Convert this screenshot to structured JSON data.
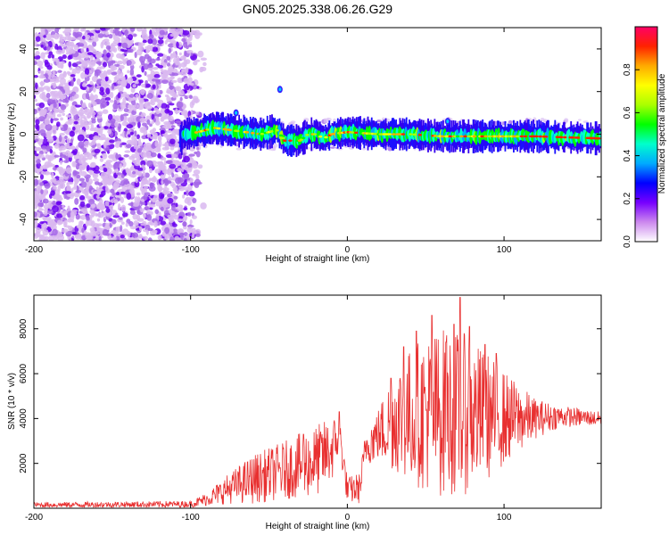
{
  "title": "GN05.2025.338.06.26.G29",
  "chart_data": [
    {
      "type": "heatmap",
      "xlabel": "Height of straight line (km)",
      "ylabel": "Frequency (Hz)",
      "xlim": [
        -200,
        162
      ],
      "ylim": [
        -50,
        50
      ],
      "xticks": [
        -200,
        -100,
        0,
        100
      ],
      "xtick_labels": [
        "-200",
        "-100",
        "0",
        "100"
      ],
      "yticks": [
        -40,
        -20,
        0,
        20,
        40
      ],
      "ytick_labels": [
        "-40",
        "-20",
        "0",
        "20",
        "40"
      ],
      "colorbar": {
        "label": "Normalized spectral amplitude",
        "range": [
          0,
          1
        ],
        "ticks": [
          0,
          0.2,
          0.4,
          0.6,
          0.8
        ],
        "tick_labels": [
          "0.0",
          "0.2",
          "0.4",
          "0.6",
          "0.8"
        ],
        "colors": [
          "#ffffff",
          "#cc88ee",
          "#7700ff",
          "#0000ff",
          "#00aaff",
          "#00ffcc",
          "#00ff00",
          "#aaff00",
          "#ffff00",
          "#ffaa00",
          "#ff2200",
          "#ff0066"
        ]
      },
      "noise_region_x": [
        -200,
        -95
      ],
      "signal_ridge": [
        {
          "x": -105,
          "y": 0
        },
        {
          "x": -95,
          "y": 1
        },
        {
          "x": -85,
          "y": 3
        },
        {
          "x": -75,
          "y": 2
        },
        {
          "x": -65,
          "y": 1
        },
        {
          "x": -55,
          "y": 0
        },
        {
          "x": -45,
          "y": 2
        },
        {
          "x": -40,
          "y": -3
        },
        {
          "x": -30,
          "y": -3
        },
        {
          "x": -25,
          "y": 0
        },
        {
          "x": -20,
          "y": 0
        },
        {
          "x": -15,
          "y": -2
        },
        {
          "x": -10,
          "y": 0
        },
        {
          "x": 0,
          "y": 1
        },
        {
          "x": 20,
          "y": 0
        },
        {
          "x": 40,
          "y": 0
        },
        {
          "x": 60,
          "y": -1
        },
        {
          "x": 90,
          "y": -1
        },
        {
          "x": 120,
          "y": -1
        },
        {
          "x": 162,
          "y": -2
        }
      ],
      "features": [
        {
          "x": -71,
          "y": 10
        },
        {
          "x": -43,
          "y": 21
        },
        {
          "x": 64,
          "y": 6
        }
      ]
    },
    {
      "type": "line",
      "xlabel": "Height of straight line (km)",
      "ylabel": "SNR (10 * v/v)",
      "xlim": [
        -200,
        162
      ],
      "ylim": [
        0,
        9500
      ],
      "xticks": [
        -200,
        -100,
        0,
        100
      ],
      "xtick_labels": [
        "-200",
        "-100",
        "0",
        "100"
      ],
      "yticks": [
        2000,
        4000,
        6000,
        8000
      ],
      "ytick_labels": [
        "2000",
        "4000",
        "6000",
        "8000"
      ],
      "color": "#e83030",
      "envelope": [
        {
          "x": -200,
          "mean": 150,
          "amp": 120
        },
        {
          "x": -100,
          "mean": 180,
          "amp": 150
        },
        {
          "x": -90,
          "mean": 400,
          "amp": 300
        },
        {
          "x": -75,
          "mean": 900,
          "amp": 700
        },
        {
          "x": -60,
          "mean": 1300,
          "amp": 1100
        },
        {
          "x": -40,
          "mean": 1700,
          "amp": 1300
        },
        {
          "x": -20,
          "mean": 2100,
          "amp": 1600
        },
        {
          "x": -10,
          "mean": 2600,
          "amp": 1500
        },
        {
          "x": -5,
          "mean": 3300,
          "amp": 900
        },
        {
          "x": 0,
          "mean": 800,
          "amp": 600
        },
        {
          "x": 8,
          "mean": 900,
          "amp": 700
        },
        {
          "x": 12,
          "mean": 2800,
          "amp": 900
        },
        {
          "x": 20,
          "mean": 3300,
          "amp": 1200
        },
        {
          "x": 30,
          "mean": 4000,
          "amp": 2400
        },
        {
          "x": 45,
          "mean": 4200,
          "amp": 3300
        },
        {
          "x": 60,
          "mean": 4300,
          "amp": 3800
        },
        {
          "x": 75,
          "mean": 4200,
          "amp": 3600
        },
        {
          "x": 90,
          "mean": 4100,
          "amp": 2800
        },
        {
          "x": 105,
          "mean": 4000,
          "amp": 1800
        },
        {
          "x": 120,
          "mean": 4000,
          "amp": 900
        },
        {
          "x": 135,
          "mean": 4100,
          "amp": 500
        },
        {
          "x": 162,
          "mean": 4000,
          "amp": 300
        }
      ],
      "peaks": [
        {
          "x": 28,
          "y": 5800
        },
        {
          "x": 36,
          "y": 7200
        },
        {
          "x": 44,
          "y": 7900
        },
        {
          "x": 54,
          "y": 8600
        },
        {
          "x": 63,
          "y": 7400
        },
        {
          "x": 68,
          "y": 8200
        },
        {
          "x": 72,
          "y": 9400
        },
        {
          "x": 78,
          "y": 8100
        },
        {
          "x": 88,
          "y": 7300
        },
        {
          "x": 95,
          "y": 6900
        },
        {
          "x": -28,
          "y": 3300
        },
        {
          "x": -5,
          "y": 4300
        }
      ]
    }
  ]
}
